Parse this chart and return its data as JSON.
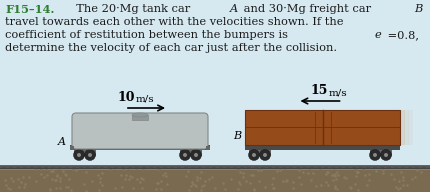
{
  "bg_color": "#d6e8f0",
  "text_color": "#1a1a1a",
  "label_color": "#2e7d32",
  "title_bold": "F15–14.",
  "line1_rest": "  The 20·Mg tank car ",
  "line1_A": "A",
  "line1_mid": " and 30·Mg freight car ",
  "line1_B": "B",
  "line2": "travel towards each other with the velocities shown. If the",
  "line3a": "coefficient of restitution between the bumpers is ",
  "line3e": "e",
  "line3b": " =0.8,",
  "line4": "determine the velocity of each car just after the collision.",
  "vel_A": "10",
  "vel_A_unit": "m/s",
  "vel_B": "15",
  "vel_B_unit": "m/s",
  "label_A": "A",
  "label_B": "B",
  "tank_body_color": "#b8c0c0",
  "tank_body_edge": "#808888",
  "tank_dome_color": "#909898",
  "undercarriage_color": "#4a4a4a",
  "freight_color": "#964B1A",
  "freight_edge": "#6B3010",
  "freight_shadow": "#c8a882",
  "wheel_outer": "#2a2a2a",
  "wheel_inner": "#888888",
  "bogie_color": "#666666",
  "rail_top_color": "#555555",
  "rail_bot_color": "#444444",
  "tie_color": "#3a3020",
  "ground_color": "#a09070",
  "ground_dark": "#7a6a50"
}
